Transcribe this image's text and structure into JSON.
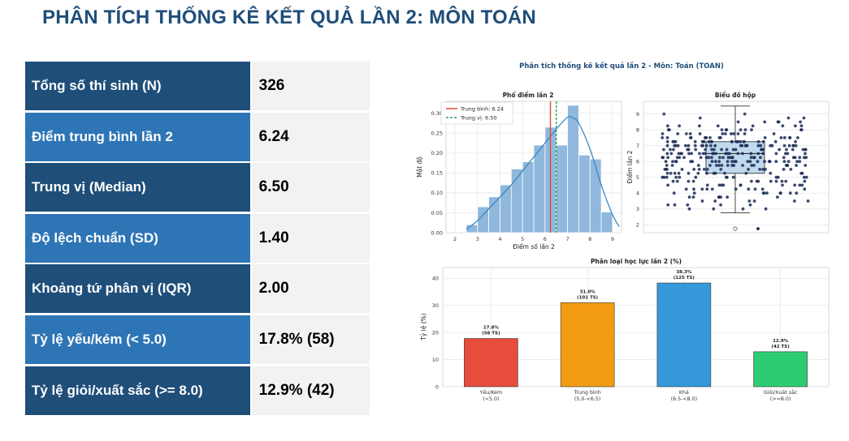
{
  "page": {
    "title": "PHÂN TÍCH THỐNG KÊ KẾT QUẢ LẦN 2: MÔN TOÁN"
  },
  "stats": [
    {
      "label": "Tổng số thí sinh (N)",
      "value": "326"
    },
    {
      "label": "Điểm trung bình lần 2",
      "value": "6.24"
    },
    {
      "label": "Trung vị (Median)",
      "value": "6.50"
    },
    {
      "label": "Độ lệch chuẩn (SD)",
      "value": "1.40"
    },
    {
      "label": "Khoảng tứ phân vị (IQR)",
      "value": "2.00"
    },
    {
      "label": "Tỷ lệ yếu/kém (< 5.0)",
      "value": "17.8% (58)"
    },
    {
      "label": "Tỷ lệ giỏi/xuất sắc (>= 8.0)",
      "value": "12.9% (42)"
    }
  ],
  "colors": {
    "title": "#1f4e79",
    "row_dark": "#1f4e79",
    "row_light": "#2e75b6",
    "value_bg": "#f2f2f2",
    "hist_bar": "#8fb8dc",
    "kde_line": "#3a86c4",
    "mean_line": "#e34a33",
    "median_line": "#2ca25f",
    "box_fill": "#a9cde6",
    "points": "#1b2a56"
  },
  "figure_title": "Phân tích thống kê kết quả lần 2 - Môn: Toán (TOAN)",
  "chart_data": [
    {
      "type": "histogram",
      "title": "Phổ điểm lần 2",
      "xlabel": "Điểm số lần 2",
      "ylabel": "Mật độ",
      "xlim": [
        1.6,
        9.4
      ],
      "ylim": [
        0,
        0.33
      ],
      "xticks": [
        "2",
        "3",
        "4",
        "5",
        "6",
        "7",
        "8",
        "9"
      ],
      "yticks": [
        "0.00",
        "0.05",
        "0.10",
        "0.15",
        "0.20",
        "0.25",
        "0.30"
      ],
      "bins": [
        {
          "x0": 2.5,
          "x1": 3.0,
          "density": 0.02
        },
        {
          "x0": 3.0,
          "x1": 3.5,
          "density": 0.065
        },
        {
          "x0": 3.5,
          "x1": 4.0,
          "density": 0.09
        },
        {
          "x0": 4.0,
          "x1": 4.5,
          "density": 0.12
        },
        {
          "x0": 4.5,
          "x1": 5.0,
          "density": 0.16
        },
        {
          "x0": 5.0,
          "x1": 5.5,
          "density": 0.178
        },
        {
          "x0": 5.5,
          "x1": 6.0,
          "density": 0.22
        },
        {
          "x0": 6.0,
          "x1": 6.5,
          "density": 0.265
        },
        {
          "x0": 6.5,
          "x1": 7.0,
          "density": 0.22
        },
        {
          "x0": 7.0,
          "x1": 7.5,
          "density": 0.32
        },
        {
          "x0": 7.5,
          "x1": 8.0,
          "density": 0.195
        },
        {
          "x0": 8.0,
          "x1": 8.5,
          "density": 0.185
        },
        {
          "x0": 8.5,
          "x1": 9.0,
          "density": 0.052
        }
      ],
      "kde": [
        [
          2.5,
          0.008
        ],
        [
          3.0,
          0.03
        ],
        [
          3.5,
          0.06
        ],
        [
          4.0,
          0.09
        ],
        [
          4.5,
          0.12
        ],
        [
          5.0,
          0.155
        ],
        [
          5.5,
          0.19
        ],
        [
          6.0,
          0.225
        ],
        [
          6.5,
          0.26
        ],
        [
          7.0,
          0.29
        ],
        [
          7.25,
          0.288
        ],
        [
          7.5,
          0.275
        ],
        [
          8.0,
          0.21
        ],
        [
          8.5,
          0.12
        ],
        [
          9.0,
          0.045
        ],
        [
          9.3,
          0.015
        ]
      ],
      "mean": 6.24,
      "median": 6.5,
      "legend": [
        {
          "label": "Trung bình: 6.24",
          "color": "#e34a33",
          "style": "solid"
        },
        {
          "label": "Trung vị: 6.50",
          "color": "#2ca25f",
          "style": "dashed"
        }
      ],
      "legend_position": "top-left"
    },
    {
      "type": "box",
      "title": "Biểu đồ hộp",
      "ylabel": "Điểm lần 2",
      "ylim": [
        1.5,
        9.8
      ],
      "yticks": [
        "2",
        "3",
        "4",
        "5",
        "6",
        "7",
        "8",
        "9"
      ],
      "q1": 5.25,
      "median": 6.5,
      "q3": 7.25,
      "whisker_low": 2.75,
      "whisker_high": 9.5,
      "outliers": [
        1.75
      ],
      "n_points": 326
    },
    {
      "type": "bar",
      "title": "Phân loại học lực lần 2 (%)",
      "ylabel": "Tỷ lệ (%)",
      "ylim": [
        0,
        44
      ],
      "yticks": [
        "0",
        "10",
        "20",
        "30",
        "40"
      ],
      "categories": [
        {
          "line1": "Yếu/Kém",
          "line2": "(<5.0)"
        },
        {
          "line1": "Trung bình",
          "line2": "(5.0-<6.5)"
        },
        {
          "line1": "Khá",
          "line2": "(6.5-<8.0)"
        },
        {
          "line1": "Giỏi/Xuất sắc",
          "line2": "(>=8.0)"
        }
      ],
      "values": [
        17.8,
        31.0,
        38.3,
        12.9
      ],
      "bar_colors": [
        "#e74c3c",
        "#f39c12",
        "#3498db",
        "#2ecc71"
      ],
      "labels": [
        {
          "pct": "17.8%",
          "count": "(58 TS)"
        },
        {
          "pct": "31.0%",
          "count": "(101 TS)"
        },
        {
          "pct": "38.3%",
          "count": "(125 TS)"
        },
        {
          "pct": "12.9%",
          "count": "(42 TS)"
        }
      ]
    }
  ]
}
